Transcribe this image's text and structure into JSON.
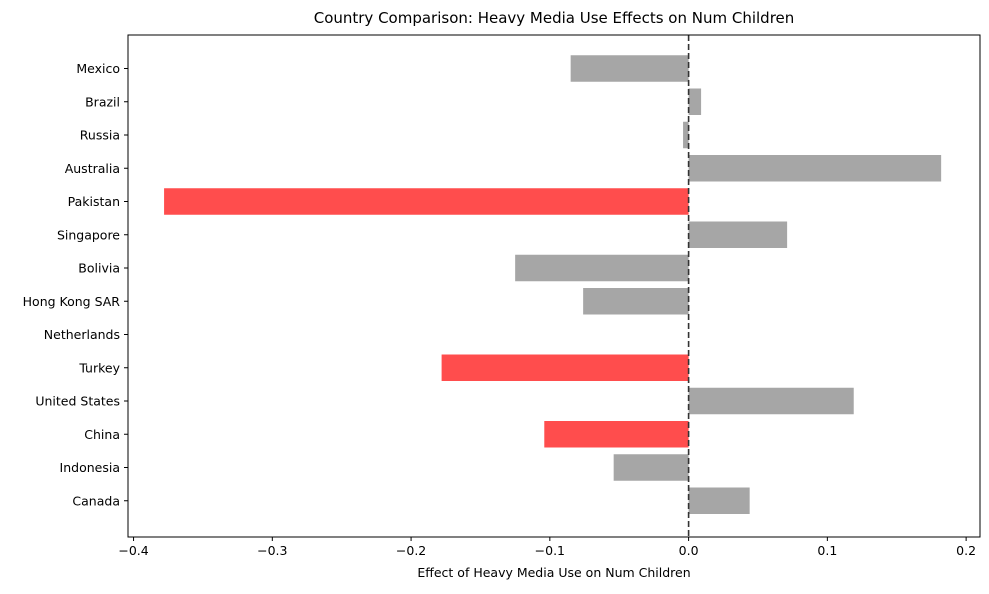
{
  "chart_data": {
    "type": "bar",
    "orientation": "horizontal",
    "title": "Country Comparison: Heavy Media Use Effects on Num Children",
    "xlabel": "Effect of Heavy Media Use on Num Children",
    "ylabel": "",
    "xlim": [
      -0.404,
      0.21
    ],
    "x_ticks": [
      {
        "value": -0.4,
        "label": "−0.4"
      },
      {
        "value": -0.3,
        "label": "−0.3"
      },
      {
        "value": -0.2,
        "label": "−0.2"
      },
      {
        "value": -0.1,
        "label": "−0.1"
      },
      {
        "value": 0.0,
        "label": "0.0"
      },
      {
        "value": 0.1,
        "label": "0.1"
      },
      {
        "value": 0.2,
        "label": "0.2"
      }
    ],
    "categories": [
      "Mexico",
      "Brazil",
      "Russia",
      "Australia",
      "Pakistan",
      "Singapore",
      "Bolivia",
      "Hong Kong SAR",
      "Netherlands",
      "Turkey",
      "United States",
      "China",
      "Indonesia",
      "Canada"
    ],
    "values": [
      -0.085,
      0.009,
      -0.004,
      0.182,
      -0.378,
      0.071,
      -0.125,
      -0.076,
      0.0,
      -0.178,
      0.119,
      -0.104,
      -0.054,
      0.044
    ],
    "highlighted": [
      false,
      false,
      false,
      false,
      true,
      false,
      false,
      false,
      false,
      true,
      false,
      true,
      false,
      false
    ],
    "reference_line": {
      "value": 0,
      "style": "dashed"
    },
    "grid": false,
    "legend": "none",
    "colors": {
      "default_bar": "#a6a6a6",
      "highlight_bar": "#ff4d4d",
      "reference_line": "#333333",
      "axes": "#000000"
    }
  }
}
